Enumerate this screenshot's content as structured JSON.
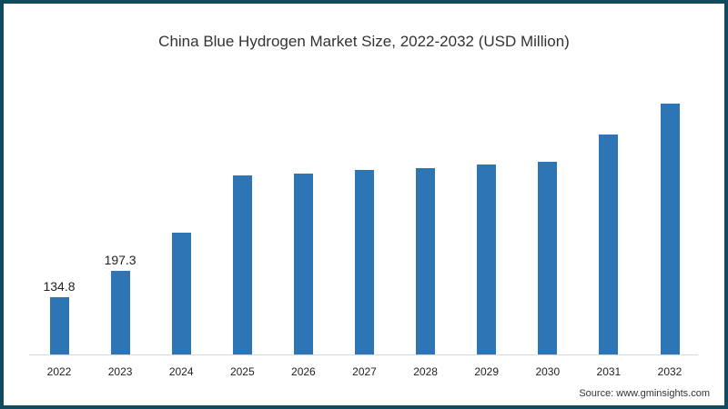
{
  "chart_data": {
    "type": "bar",
    "title": "China Blue Hydrogen Market Size, 2022-2032 (USD Million)",
    "xlabel": "",
    "ylabel": "",
    "categories": [
      "2022",
      "2023",
      "2024",
      "2025",
      "2026",
      "2027",
      "2028",
      "2029",
      "2030",
      "2031",
      "2032"
    ],
    "values": [
      134.8,
      197.3,
      287,
      421,
      426,
      434,
      439,
      447,
      454,
      518,
      590
    ],
    "data_labels": [
      "134.8",
      "197.3",
      "",
      "",
      "",
      "",
      "",
      "",
      "",
      "",
      ""
    ],
    "ylim": [
      0,
      700
    ],
    "grid": false,
    "legend": null,
    "bar_color": "#2e75b6"
  },
  "source": "Source: www.gminsights.com",
  "colors": {
    "border": "#0f4a5e",
    "bar": "#2e75b6"
  }
}
